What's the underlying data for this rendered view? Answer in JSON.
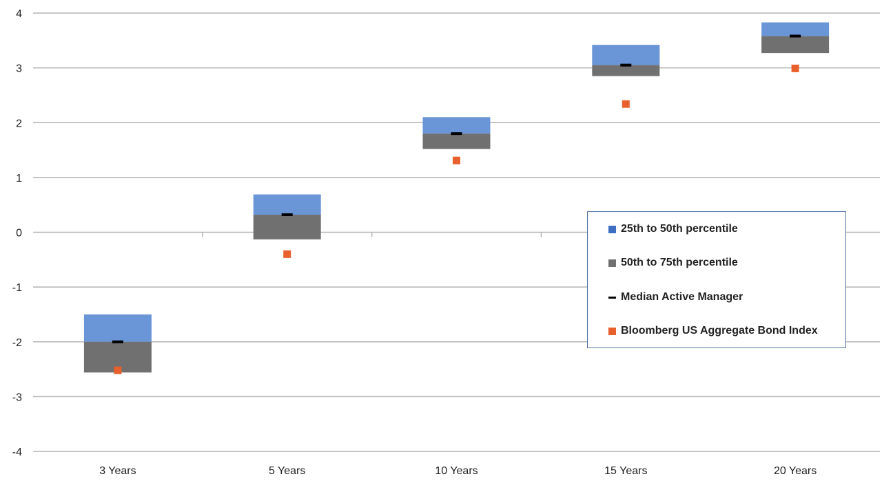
{
  "chart_data": {
    "type": "bar",
    "title": "",
    "xlabel": "",
    "ylabel": "",
    "categories": [
      "3 Years",
      "5 Years",
      "10 Years",
      "15 Years",
      "20 Years"
    ],
    "ylim": [
      -4,
      4
    ],
    "yticks": [
      "4",
      "3",
      "2",
      "1",
      "0",
      "-1",
      "-2",
      "-3",
      "-4"
    ],
    "grid": true,
    "legend_position": "right",
    "series": [
      {
        "name": "25th to 50th percentile",
        "color": "#6a95d6",
        "low": [
          -2.0,
          0.32,
          1.8,
          3.05,
          3.58
        ],
        "high": [
          -1.5,
          0.69,
          2.1,
          3.42,
          3.83
        ]
      },
      {
        "name": "50th to 75th percentile",
        "color": "#707070",
        "low": [
          -2.56,
          -0.13,
          1.52,
          2.85,
          3.27
        ],
        "high": [
          -2.0,
          0.32,
          1.8,
          3.05,
          3.58
        ]
      },
      {
        "name": "Median Active Manager",
        "color": "#000000",
        "values": [
          -2.0,
          0.32,
          1.8,
          3.05,
          3.58
        ]
      },
      {
        "name": "Bloomberg US Aggregate Bond Index",
        "color": "#e8602c",
        "values": [
          -2.52,
          -0.4,
          1.31,
          2.34,
          2.99
        ]
      }
    ]
  },
  "legend": {
    "items": [
      {
        "label": "25th to 50th percentile",
        "color": "#3e6ec1",
        "kind": "square"
      },
      {
        "label": "50th to 75th percentile",
        "color": "#707070",
        "kind": "square"
      },
      {
        "label": "Median Active Manager",
        "color": "#000000",
        "kind": "line"
      },
      {
        "label": "Bloomberg US Aggregate Bond Index",
        "color": "#e8602c",
        "kind": "square"
      }
    ]
  }
}
